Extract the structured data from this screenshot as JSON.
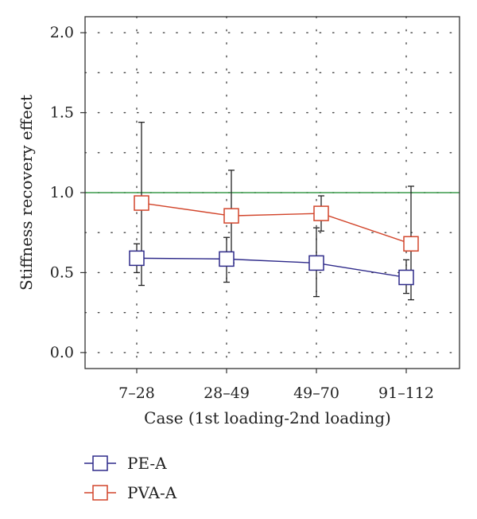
{
  "chart_data": {
    "type": "line",
    "title": "",
    "xlabel": "Case (1st loading-2nd loading)",
    "ylabel": "Stiffness recovery effect",
    "categories": [
      "7–28",
      "28–49",
      "49–70",
      "91–112"
    ],
    "ylim": [
      -0.1,
      2.1
    ],
    "yticks": [
      0.0,
      0.5,
      1.0,
      1.5,
      2.0
    ],
    "ytick_labels": [
      "0.0",
      "0.5",
      "1.0",
      "1.5",
      "2.0"
    ],
    "grid": true,
    "reference_line": {
      "y": 1.0,
      "color": "#3a9a4a"
    },
    "legend_placement": "bottom-left",
    "series": [
      {
        "name": "PE-A",
        "color": "#2e2a8a",
        "marker": "open-square",
        "values": [
          0.59,
          0.585,
          0.56,
          0.47
        ],
        "err_low": [
          0.5,
          0.44,
          0.35,
          0.37
        ],
        "err_high": [
          0.68,
          0.72,
          0.78,
          0.58
        ]
      },
      {
        "name": "PVA-A",
        "color": "#d2452b",
        "marker": "open-square",
        "values": [
          0.935,
          0.855,
          0.87,
          0.68
        ],
        "err_low": [
          0.42,
          0.56,
          0.76,
          0.33
        ],
        "err_high": [
          1.44,
          1.14,
          0.98,
          1.04
        ]
      }
    ]
  }
}
